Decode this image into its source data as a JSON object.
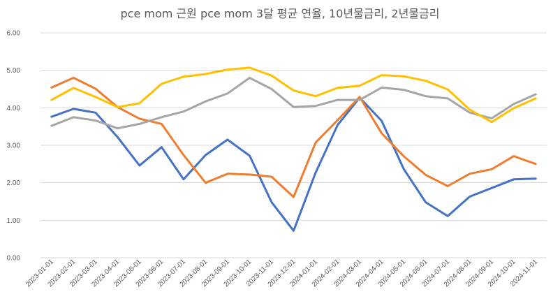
{
  "chart_data": {
    "type": "line",
    "title": "pce mom 근원 pce mom 3달 평균 연율, 10년물금리, 2년물금리",
    "xlabel": "",
    "ylabel": "",
    "ylim": [
      0,
      6
    ],
    "y_ticks": [
      "0.00",
      "1.00",
      "2.00",
      "3.00",
      "4.00",
      "5.00",
      "6.00"
    ],
    "grid": true,
    "legend": "none",
    "categories": [
      "2023-01-01",
      "2023-02-01",
      "2023-03-01",
      "2023-04-01",
      "2023-05-01",
      "2023-06-01",
      "2023-07-01",
      "2023-08-01",
      "2023-09-01",
      "2023-10-01",
      "2023-11-01",
      "2023-12-01",
      "2024-01-01",
      "2024-02-01",
      "2024-03-01",
      "2024-04-01",
      "2024-05-01",
      "2024-06-01",
      "2024-07-01",
      "2024-08-01",
      "2024-09-01",
      "2024-10-01",
      "2024-11-01"
    ],
    "series": [
      {
        "name": "pce mom",
        "color": "#4472C4",
        "values": [
          3.76,
          3.97,
          3.87,
          3.22,
          2.46,
          2.95,
          2.09,
          2.74,
          3.15,
          2.72,
          1.48,
          0.72,
          2.27,
          3.54,
          4.27,
          3.65,
          2.37,
          1.48,
          1.11,
          1.63,
          1.86,
          2.09,
          2.11
        ]
      },
      {
        "name": "근원 pce mom 3달 평균 연율",
        "color": "#ED7D31",
        "values": [
          4.54,
          4.8,
          4.51,
          4.02,
          3.71,
          3.57,
          2.74,
          2.0,
          2.24,
          2.22,
          2.16,
          1.62,
          3.07,
          3.67,
          4.29,
          3.32,
          2.71,
          2.21,
          1.91,
          2.24,
          2.36,
          2.71,
          2.5
        ]
      },
      {
        "name": "10년물금리",
        "color": "#A5A5A5",
        "values": [
          3.52,
          3.75,
          3.66,
          3.45,
          3.57,
          3.75,
          3.9,
          4.17,
          4.38,
          4.8,
          4.5,
          4.02,
          4.05,
          4.21,
          4.21,
          4.54,
          4.48,
          4.31,
          4.25,
          3.87,
          3.72,
          4.1,
          4.36
        ]
      },
      {
        "name": "2년물금리",
        "color": "#FFC000",
        "values": [
          4.21,
          4.53,
          4.29,
          4.02,
          4.12,
          4.64,
          4.83,
          4.9,
          5.02,
          5.07,
          4.86,
          4.46,
          4.31,
          4.53,
          4.59,
          4.87,
          4.84,
          4.72,
          4.49,
          3.95,
          3.62,
          3.99,
          4.25
        ]
      }
    ]
  }
}
